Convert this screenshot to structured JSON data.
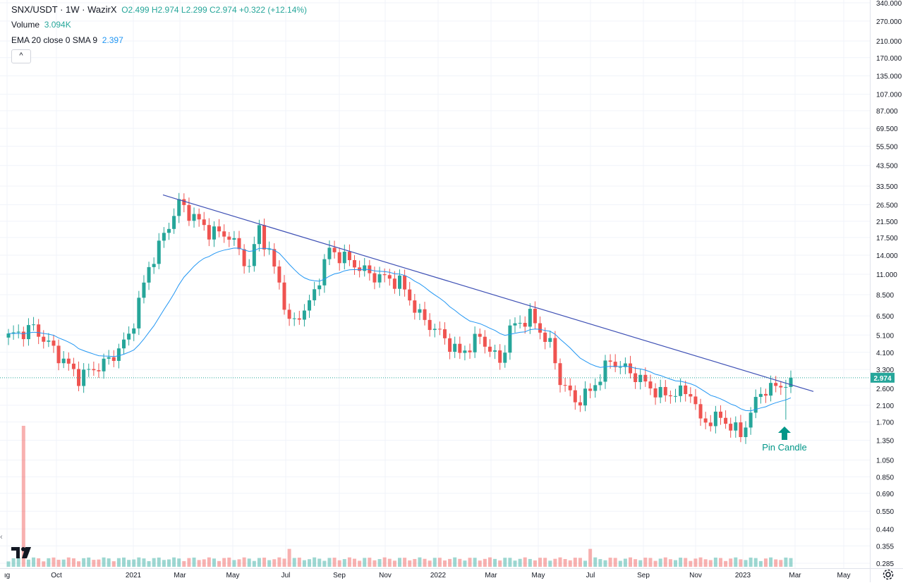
{
  "header": {
    "symbol_line": "SNX/USDT · 1W · WazirX",
    "ohlc": "O2.499 H2.974 L2.299 C2.974 +0.322 (+12.14%)",
    "volume_label": "Volume",
    "volume_value": "3.094K",
    "ema_label": "EMA 20 close 0 SMA 9",
    "ema_value": "2.397",
    "collapse_glyph": "^"
  },
  "colors": {
    "up": "#26a69a",
    "down": "#ef5350",
    "ema": "#2196f3",
    "trendline": "#3f51b5",
    "grid": "#f0f3fa",
    "arrow": "#009688"
  },
  "chart_data": {
    "type": "candlestick",
    "y_scale": "log",
    "ylim": [
      0.28,
      340
    ],
    "current_price_label": "2.974",
    "y_ticks": [
      "340.000",
      "270.000",
      "210.000",
      "170.000",
      "135.000",
      "107.000",
      "87.000",
      "69.500",
      "55.500",
      "43.500",
      "33.500",
      "26.500",
      "21.500",
      "17.500",
      "14.000",
      "11.000",
      "8.500",
      "6.500",
      "5.100",
      "4.100",
      "3.300",
      "2.600",
      "2.100",
      "1.700",
      "1.350",
      "1.050",
      "0.850",
      "0.690",
      "0.550",
      "0.440",
      "0.355",
      "0.285"
    ],
    "x_ticks": [
      "ıg",
      "Oct",
      "2021",
      "Mar",
      "May",
      "Jul",
      "Sep",
      "Nov",
      "2022",
      "Mar",
      "May",
      "Jul",
      "Sep",
      "Nov",
      "2023",
      "Mar",
      "May"
    ],
    "annotation": {
      "text": "Pin Candle"
    },
    "trendline": {
      "from_price": 30.0,
      "to_price": 2.5
    },
    "volume": {
      "spike_value": 63,
      "typical_value": 3
    }
  }
}
